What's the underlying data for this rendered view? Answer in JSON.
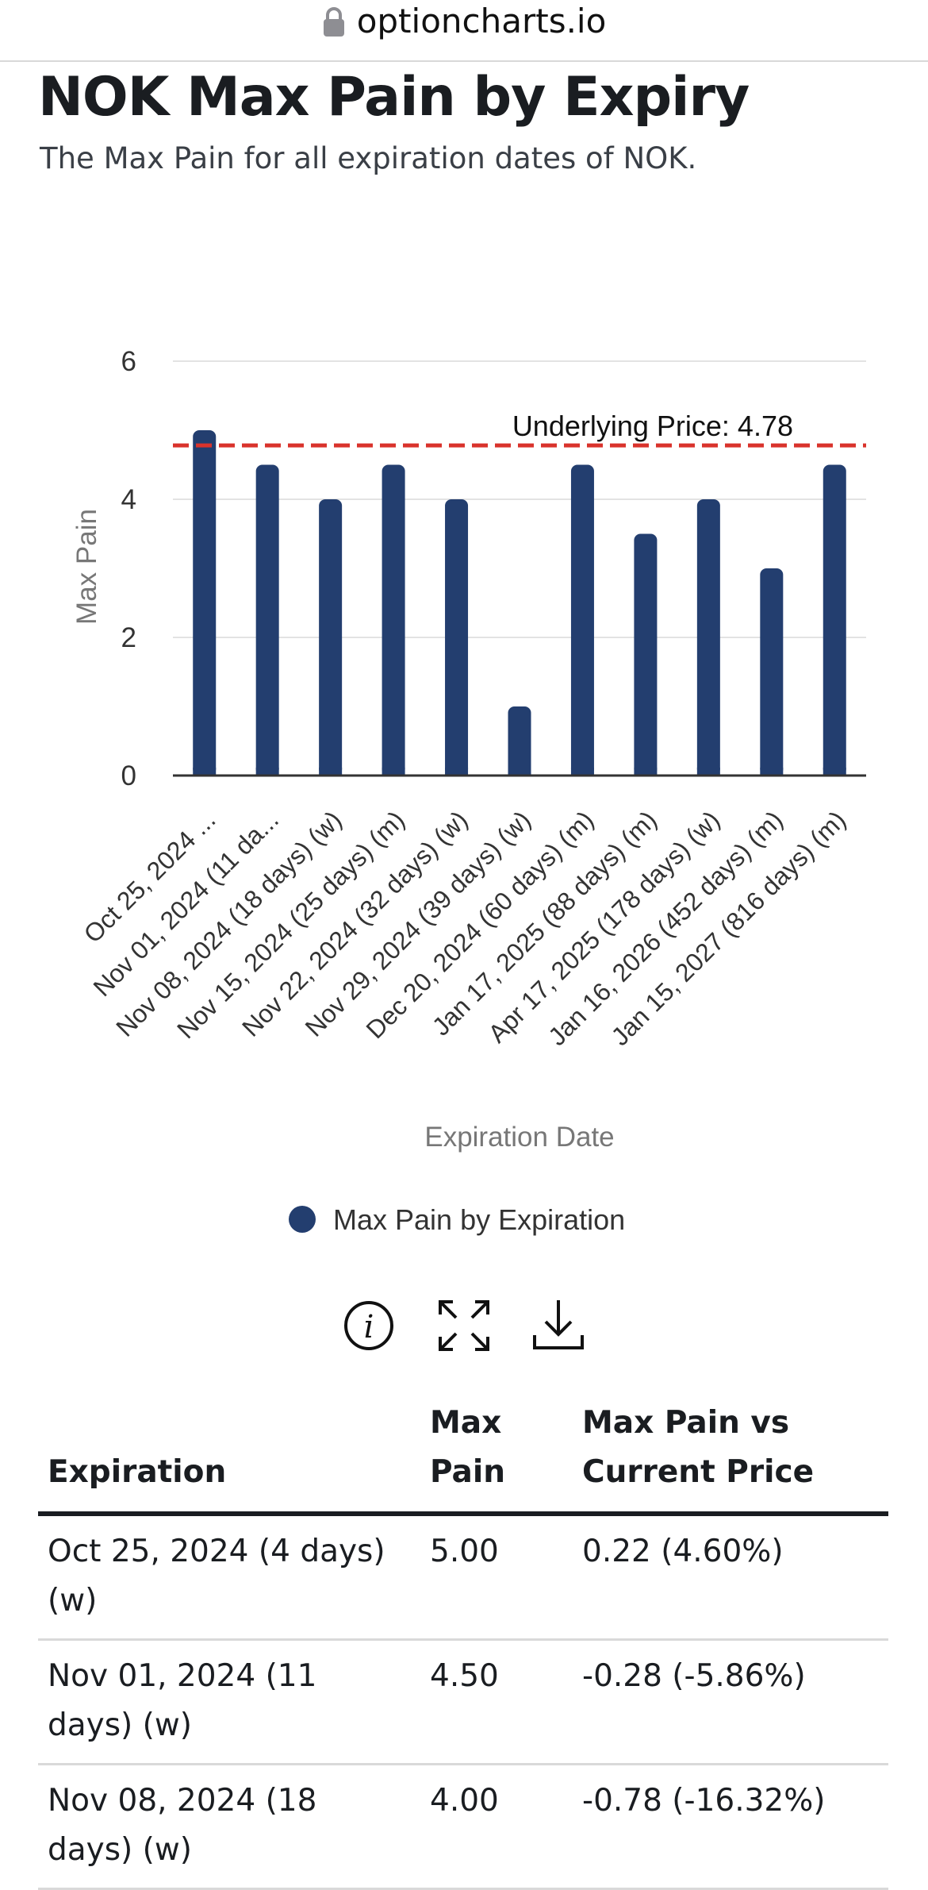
{
  "browser": {
    "url": "optioncharts.io",
    "lock_icon": "lock-icon"
  },
  "header": {
    "title": "NOK Max Pain by Expiry",
    "subtitle": "The Max Pain for all expiration dates of NOK."
  },
  "chart_data": {
    "type": "bar",
    "categories": [
      "Oct 25, 2024 ...",
      "Nov 01, 2024 (11 da...",
      "Nov 08, 2024 (18 days) (w)",
      "Nov 15, 2024 (25 days) (m)",
      "Nov 22, 2024 (32 days) (w)",
      "Nov 29, 2024 (39 days) (w)",
      "Dec 20, 2024 (60 days) (m)",
      "Jan 17, 2025 (88 days) (m)",
      "Apr 17, 2025 (178 days) (w)",
      "Jan 16, 2026 (452 days) (m)",
      "Jan 15, 2027 (816 days) (m)"
    ],
    "series": [
      {
        "name": "Max Pain by Expiration",
        "values": [
          5.0,
          4.5,
          4.0,
          4.5,
          4.0,
          1.0,
          4.5,
          3.5,
          4.0,
          3.0,
          4.5
        ],
        "color": "#233e6f"
      }
    ],
    "xlabel": "Expiration Date",
    "ylabel": "Max Pain",
    "ylim": [
      0,
      6
    ],
    "yticks": [
      "0",
      "2",
      "4",
      "6"
    ],
    "grid": true,
    "legend": "bottom-center",
    "reference_line": {
      "value": 4.78,
      "label": "Underlying Price: 4.78",
      "color": "#d9332c",
      "style": "dashed"
    }
  },
  "toolbar": {
    "info_icon": "info-icon",
    "fullscreen_icon": "fullscreen-icon",
    "download_icon": "download-icon"
  },
  "table": {
    "headers": {
      "expiration": "Expiration",
      "max_pain": "Max Pain",
      "vs_price": "Max Pain vs Current Price"
    },
    "rows": [
      {
        "expiration": "Oct 25, 2024 (4 days) (w)",
        "max_pain": "5.00",
        "vs_price": "0.22 (4.60%)",
        "direction": "pos"
      },
      {
        "expiration": "Nov 01, 2024 (11 days) (w)",
        "max_pain": "4.50",
        "vs_price": "-0.28 (-5.86%)",
        "direction": "neg"
      },
      {
        "expiration": "Nov 08, 2024 (18 days) (w)",
        "max_pain": "4.00",
        "vs_price": "-0.78 (-16.32%)",
        "direction": "neg"
      }
    ]
  }
}
